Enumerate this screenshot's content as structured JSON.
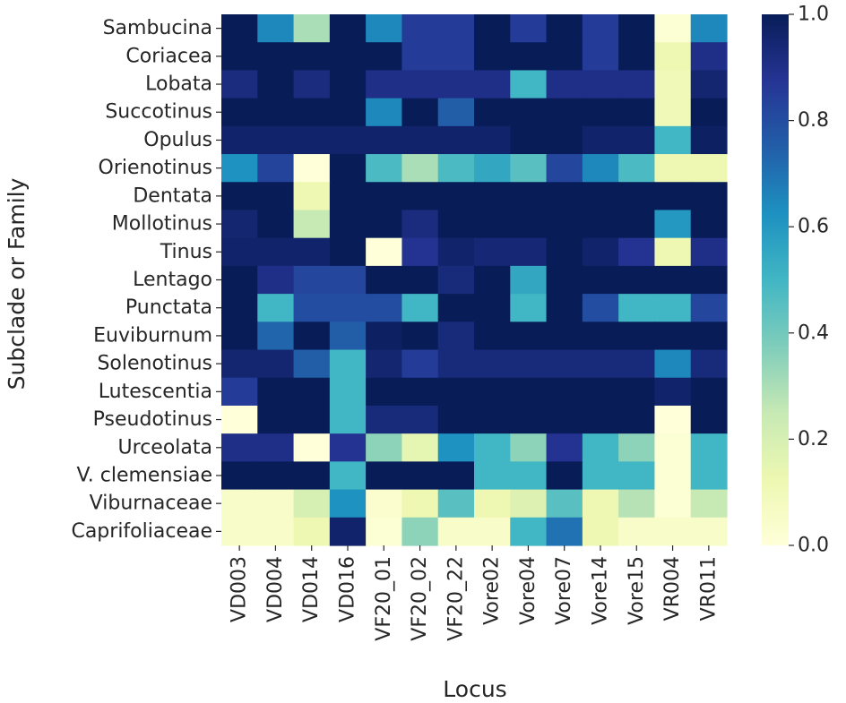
{
  "chart_data": {
    "type": "heatmap",
    "title": "",
    "xlabel": "Locus",
    "ylabel": "Subclade or Family",
    "x_categories": [
      "VD003",
      "VD004",
      "VD014",
      "VD016",
      "VF20_01",
      "VF20_02",
      "VF20_22",
      "Vore02",
      "Vore04",
      "Vore07",
      "Vore14",
      "Vore15",
      "VR004",
      "VR011"
    ],
    "y_categories": [
      "Sambucina",
      "Coriacea",
      "Lobata",
      "Succotinus",
      "Opulus",
      "Orienotinus",
      "Dentata",
      "Mollotinus",
      "Tinus",
      "Lentago",
      "Punctata",
      "Euviburnum",
      "Solenotinus",
      "Lutescentia",
      "Pseudotinus",
      "Urceolata",
      "V. clemensiae",
      "Viburnaceae",
      "Caprifoliaceae"
    ],
    "values": [
      [
        1.0,
        0.65,
        0.3,
        1.0,
        0.65,
        0.85,
        0.85,
        1.0,
        0.85,
        1.0,
        0.85,
        1.0,
        0.02,
        0.65
      ],
      [
        1.0,
        1.0,
        1.0,
        1.0,
        1.0,
        0.85,
        0.85,
        1.0,
        1.0,
        1.0,
        0.85,
        1.0,
        0.12,
        0.9
      ],
      [
        0.92,
        1.0,
        0.92,
        1.0,
        0.9,
        0.9,
        0.9,
        0.9,
        0.5,
        0.9,
        0.9,
        0.9,
        0.1,
        0.95
      ],
      [
        1.0,
        1.0,
        1.0,
        1.0,
        0.65,
        1.0,
        0.75,
        1.0,
        1.0,
        1.0,
        1.0,
        1.0,
        0.1,
        1.0
      ],
      [
        0.96,
        0.96,
        0.96,
        0.96,
        0.96,
        0.96,
        0.96,
        0.96,
        1.0,
        1.0,
        0.96,
        0.96,
        0.5,
        0.98
      ],
      [
        0.62,
        0.83,
        0.0,
        1.0,
        0.48,
        0.3,
        0.48,
        0.55,
        0.45,
        0.82,
        0.65,
        0.48,
        0.12,
        0.12
      ],
      [
        1.0,
        1.0,
        0.12,
        1.0,
        1.0,
        1.0,
        1.0,
        1.0,
        1.0,
        1.0,
        1.0,
        1.0,
        1.0,
        1.0
      ],
      [
        0.95,
        1.0,
        0.25,
        1.0,
        1.0,
        0.92,
        1.0,
        1.0,
        1.0,
        1.0,
        1.0,
        1.0,
        0.6,
        1.0
      ],
      [
        0.96,
        0.96,
        0.96,
        1.0,
        0.0,
        0.88,
        0.96,
        0.94,
        0.94,
        1.0,
        0.96,
        0.88,
        0.12,
        0.9
      ],
      [
        1.0,
        0.9,
        0.82,
        0.82,
        1.0,
        1.0,
        0.93,
        1.0,
        0.55,
        1.0,
        1.0,
        1.0,
        1.0,
        1.0
      ],
      [
        1.0,
        0.5,
        0.8,
        0.8,
        0.8,
        0.5,
        1.0,
        1.0,
        0.5,
        1.0,
        0.8,
        0.5,
        0.5,
        0.82
      ],
      [
        1.0,
        0.73,
        1.0,
        0.75,
        0.98,
        1.0,
        0.93,
        1.0,
        1.0,
        1.0,
        1.0,
        1.0,
        1.0,
        1.0
      ],
      [
        0.95,
        0.95,
        0.75,
        0.5,
        0.95,
        0.85,
        0.93,
        0.93,
        0.93,
        0.93,
        0.93,
        0.93,
        0.65,
        0.93
      ],
      [
        0.85,
        1.0,
        1.0,
        0.5,
        1.0,
        1.0,
        1.0,
        1.0,
        1.0,
        1.0,
        1.0,
        1.0,
        0.96,
        1.0
      ],
      [
        0.0,
        1.0,
        1.0,
        0.5,
        0.93,
        0.93,
        1.0,
        1.0,
        1.0,
        1.0,
        1.0,
        1.0,
        0.0,
        1.0
      ],
      [
        0.9,
        0.9,
        0.0,
        0.88,
        0.35,
        0.15,
        0.62,
        0.5,
        0.35,
        0.88,
        0.5,
        0.35,
        0.02,
        0.5
      ],
      [
        1.0,
        1.0,
        1.0,
        0.5,
        1.0,
        1.0,
        1.0,
        0.5,
        0.5,
        1.0,
        0.5,
        0.5,
        0.02,
        0.5
      ],
      [
        0.05,
        0.05,
        0.2,
        0.62,
        0.03,
        0.12,
        0.45,
        0.12,
        0.18,
        0.45,
        0.12,
        0.28,
        0.02,
        0.25
      ],
      [
        0.05,
        0.05,
        0.12,
        0.96,
        0.02,
        0.35,
        0.05,
        0.05,
        0.5,
        0.7,
        0.12,
        0.05,
        0.05,
        0.05
      ]
    ],
    "colorbar": {
      "range": [
        0.0,
        1.0
      ],
      "ticks": [
        0.0,
        0.2,
        0.4,
        0.6,
        0.8,
        1.0
      ],
      "tick_labels": [
        "0.0",
        "0.2",
        "0.4",
        "0.6",
        "0.8",
        "1.0"
      ],
      "colormap": "YlGnBu",
      "stops": [
        "#ffffd9",
        "#edf8b1",
        "#c7e9b4",
        "#7fcdbb",
        "#41b6c4",
        "#1d91c0",
        "#225ea8",
        "#253494",
        "#081d58"
      ]
    },
    "grid": false,
    "legend": "colorbar-right"
  }
}
